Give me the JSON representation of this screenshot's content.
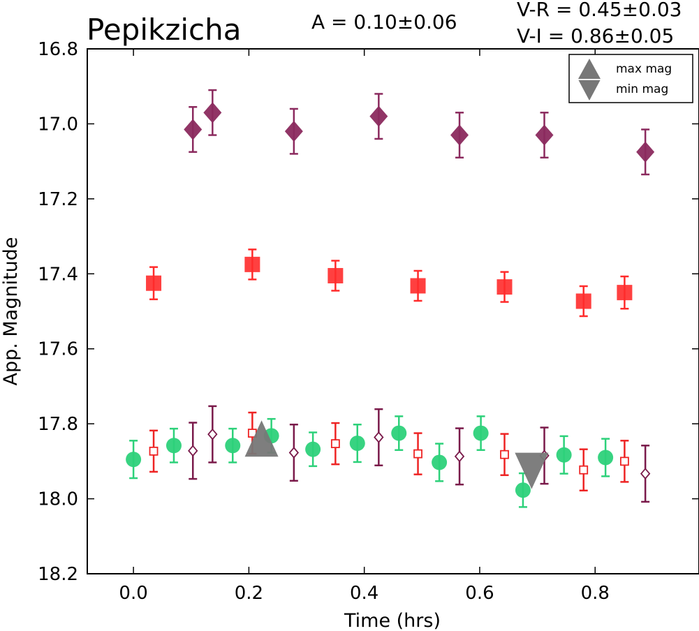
{
  "chart_data": {
    "type": "scatter",
    "title": "Pepikzicha",
    "annotations": {
      "amplitude": "A  = 0.10±0.06",
      "v_minus_r": "V-R = 0.45±0.03",
      "v_minus_i": "V-I  = 0.86±0.05"
    },
    "xlabel": "Time (hrs)",
    "ylabel": "App. Magnitude",
    "xlim": [
      -0.08,
      0.98
    ],
    "ylim": [
      18.2,
      16.8
    ],
    "y_inverted": true,
    "xticks": [
      "0.0",
      "0.2",
      "0.4",
      "0.6",
      "0.8"
    ],
    "xtick_values": [
      0.0,
      0.2,
      0.4,
      0.6,
      0.8
    ],
    "yticks": [
      "16.8",
      "17.0",
      "17.2",
      "17.4",
      "17.6",
      "17.8",
      "18.0",
      "18.2"
    ],
    "ytick_values": [
      16.8,
      17.0,
      17.2,
      17.4,
      17.6,
      17.8,
      18.0,
      18.2
    ],
    "grid": false,
    "legend": {
      "placement": "top-right",
      "entries": [
        {
          "label": "max mag",
          "marker": "triangle-up"
        },
        {
          "label": "min mag",
          "marker": "triangle-down"
        }
      ]
    },
    "series": [
      {
        "marker": "diamond-filled",
        "color": "#8b2a5e",
        "points": [
          {
            "x": 0.103,
            "y": 17.015,
            "err": 0.06
          },
          {
            "x": 0.137,
            "y": 16.97,
            "err": 0.06
          },
          {
            "x": 0.278,
            "y": 17.02,
            "err": 0.06
          },
          {
            "x": 0.425,
            "y": 16.98,
            "err": 0.06
          },
          {
            "x": 0.565,
            "y": 17.03,
            "err": 0.06
          },
          {
            "x": 0.712,
            "y": 17.03,
            "err": 0.06
          },
          {
            "x": 0.887,
            "y": 17.075,
            "err": 0.06
          }
        ]
      },
      {
        "marker": "square-filled",
        "color": "#ff2b2b",
        "points": [
          {
            "x": 0.035,
            "y": 17.425,
            "err": 0.043
          },
          {
            "x": 0.206,
            "y": 17.375,
            "err": 0.04
          },
          {
            "x": 0.35,
            "y": 17.405,
            "err": 0.04
          },
          {
            "x": 0.493,
            "y": 17.432,
            "err": 0.04
          },
          {
            "x": 0.643,
            "y": 17.435,
            "err": 0.04
          },
          {
            "x": 0.78,
            "y": 17.473,
            "err": 0.04
          },
          {
            "x": 0.851,
            "y": 17.45,
            "err": 0.043
          }
        ]
      },
      {
        "marker": "circle-filled",
        "color": "#2dd17a",
        "points": [
          {
            "x": 0.0,
            "y": 17.895,
            "err": 0.05
          },
          {
            "x": 0.07,
            "y": 17.858,
            "err": 0.045
          },
          {
            "x": 0.172,
            "y": 17.858,
            "err": 0.045
          },
          {
            "x": 0.239,
            "y": 17.832,
            "err": 0.045
          },
          {
            "x": 0.311,
            "y": 17.868,
            "err": 0.045
          },
          {
            "x": 0.388,
            "y": 17.852,
            "err": 0.05
          },
          {
            "x": 0.46,
            "y": 17.825,
            "err": 0.045
          },
          {
            "x": 0.53,
            "y": 17.903,
            "err": 0.05
          },
          {
            "x": 0.602,
            "y": 17.825,
            "err": 0.045
          },
          {
            "x": 0.675,
            "y": 17.977,
            "err": 0.045
          },
          {
            "x": 0.746,
            "y": 17.883,
            "err": 0.05
          },
          {
            "x": 0.818,
            "y": 17.89,
            "err": 0.05
          }
        ]
      },
      {
        "marker": "square-open",
        "color": "#ee2424",
        "points": [
          {
            "x": 0.035,
            "y": 17.873,
            "err": 0.055
          },
          {
            "x": 0.206,
            "y": 17.825,
            "err": 0.055
          },
          {
            "x": 0.35,
            "y": 17.853,
            "err": 0.055
          },
          {
            "x": 0.493,
            "y": 17.88,
            "err": 0.055
          },
          {
            "x": 0.643,
            "y": 17.882,
            "err": 0.055
          },
          {
            "x": 0.78,
            "y": 17.923,
            "err": 0.055
          },
          {
            "x": 0.851,
            "y": 17.9,
            "err": 0.055
          }
        ]
      },
      {
        "marker": "diamond-open",
        "color": "#7a1a4a",
        "points": [
          {
            "x": 0.103,
            "y": 17.872,
            "err": 0.075
          },
          {
            "x": 0.137,
            "y": 17.828,
            "err": 0.075
          },
          {
            "x": 0.278,
            "y": 17.877,
            "err": 0.075
          },
          {
            "x": 0.425,
            "y": 17.836,
            "err": 0.075
          },
          {
            "x": 0.565,
            "y": 17.887,
            "err": 0.075
          },
          {
            "x": 0.712,
            "y": 17.885,
            "err": 0.075
          },
          {
            "x": 0.887,
            "y": 17.933,
            "err": 0.075
          }
        ]
      },
      {
        "marker": "triangle-up",
        "color": "#777777",
        "label": "max mag",
        "points": [
          {
            "x": 0.222,
            "y": 17.843
          }
        ]
      },
      {
        "marker": "triangle-down",
        "color": "#777777",
        "label": "min mag",
        "points": [
          {
            "x": 0.69,
            "y": 17.922
          }
        ]
      }
    ]
  }
}
